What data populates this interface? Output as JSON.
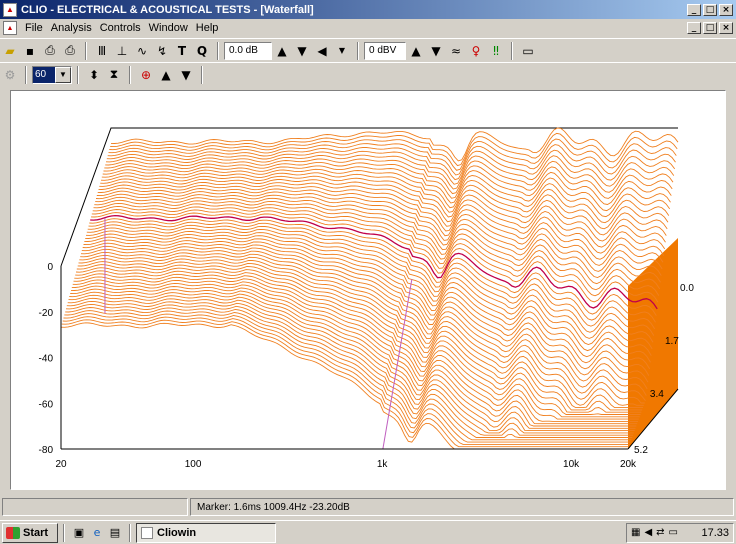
{
  "window": {
    "title": "CLIO - ELECTRICAL & ACOUSTICAL TESTS - [Waterfall]",
    "min": "_",
    "max": "□",
    "close": "×"
  },
  "menu": {
    "items": [
      "File",
      "Analysis",
      "Controls",
      "Window",
      "Help"
    ]
  },
  "toolbar": {
    "output_level": "0.0 dB",
    "input_level": "0 dBV",
    "zoom_value": "60"
  },
  "status": {
    "marker": "Marker:  1.6ms  1009.4Hz  -23.20dB"
  },
  "taskbar": {
    "start_label": "Start",
    "task_label": "Cliowin",
    "clock": "17.33"
  },
  "chart_data": {
    "type": "waterfall",
    "y_ticks": [
      "0",
      "-20",
      "-40",
      "-60",
      "-80"
    ],
    "y_range_dB": [
      -80,
      0
    ],
    "x_ticks": [
      "20",
      "100",
      "1k",
      "10k",
      "20k"
    ],
    "x_range_Hz": [
      20,
      20000
    ],
    "x_scale": "log",
    "time_ticks_ms": [
      "0.0",
      "1.7",
      "3.4",
      "5.2"
    ],
    "time_range_ms": [
      0,
      5.2
    ],
    "slices": 60,
    "marker": {
      "time_ms": 1.6,
      "freq_Hz": 1009.4,
      "level_dB": -23.2
    },
    "colors": {
      "slice": "#f08020",
      "side": "#f07800",
      "highlight": "#c0004a",
      "marker": "#c060c0",
      "axis": "#000000"
    }
  }
}
